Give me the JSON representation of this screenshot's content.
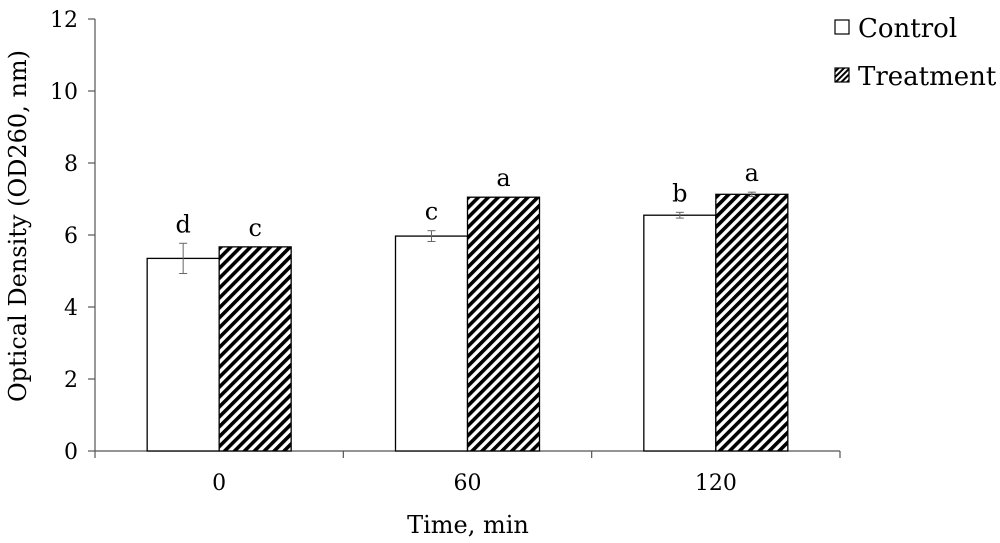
{
  "chart_data": {
    "type": "bar",
    "title": "",
    "xlabel": "Time, min",
    "ylabel": "Optical Density (OD260, nm)",
    "categories": [
      "0",
      "60",
      "120"
    ],
    "ylim": [
      0,
      12
    ],
    "yticks": [
      "0",
      "2",
      "4",
      "6",
      "8",
      "10",
      "12"
    ],
    "grid": false,
    "legend_position": "top-right",
    "series": [
      {
        "name": "Control",
        "values": [
          5.35,
          5.97,
          6.55
        ],
        "errors": [
          0.42,
          0.15,
          0.08
        ],
        "letters": [
          "d",
          "c",
          "b"
        ],
        "pattern": "open",
        "color": "#ffffff"
      },
      {
        "name": "Treatment",
        "values": [
          5.67,
          7.05,
          7.13
        ],
        "errors": [
          0.0,
          0.0,
          0.06
        ],
        "letters": [
          "c",
          "a",
          "a"
        ],
        "pattern": "hatched",
        "color": "#000000"
      }
    ]
  }
}
